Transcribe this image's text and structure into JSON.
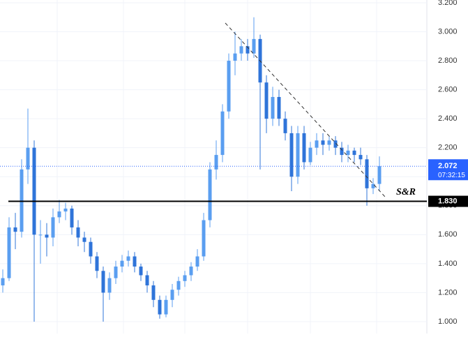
{
  "chart_data": {
    "type": "candlestick",
    "up_color": "#5a9ef0",
    "down_color": "#2f74d9",
    "ylim": [
      0.918,
      3.219
    ],
    "yticks": [
      {
        "value": 1,
        "label": "1.000"
      },
      {
        "value": 1.2,
        "label": "1.200"
      },
      {
        "value": 1.4,
        "label": "1.400"
      },
      {
        "value": 1.6,
        "label": "1.600"
      },
      {
        "value": 1.8,
        "label": "1.800"
      },
      {
        "value": 2,
        "label": "2.000"
      },
      {
        "value": 2.2,
        "label": "2.200"
      },
      {
        "value": 2.4,
        "label": "2.400"
      },
      {
        "value": 2.6,
        "label": "2.600"
      },
      {
        "value": 2.8,
        "label": "2.800"
      },
      {
        "value": 3,
        "label": "3.000"
      },
      {
        "value": 3.2,
        "label": "3.200"
      }
    ],
    "grid": true,
    "open": [
      1.25,
      1.3,
      1.65,
      1.62,
      2.05,
      2.2,
      1.6,
      1.6,
      1.58,
      1.72,
      1.76,
      1.78,
      1.65,
      1.58,
      1.55,
      1.45,
      1.35,
      1.2,
      1.3,
      1.38,
      1.42,
      1.45,
      1.38,
      1.32,
      1.25,
      1.15,
      1.05,
      1.15,
      1.22,
      1.28,
      1.32,
      1.38,
      1.45,
      1.7,
      2.05,
      2.15,
      2.45,
      2.8,
      2.85,
      2.9,
      2.85,
      2.95,
      2.65,
      2.4,
      2.55,
      2.4,
      2.3,
      2.0,
      2.3,
      2.1,
      2.2,
      2.25,
      2.22,
      2.25,
      2.2,
      2.15,
      2.18,
      2.15,
      2.12,
      1.92,
      1.95
    ],
    "high": [
      1.36,
      1.72,
      1.75,
      2.12,
      2.47,
      2.25,
      1.7,
      1.68,
      1.78,
      1.84,
      1.82,
      1.8,
      1.7,
      1.62,
      1.58,
      1.48,
      1.38,
      1.34,
      1.42,
      1.46,
      1.49,
      1.48,
      1.4,
      1.35,
      1.28,
      1.18,
      1.18,
      1.26,
      1.31,
      1.35,
      1.41,
      1.5,
      1.75,
      2.1,
      2.25,
      2.5,
      2.85,
      3.0,
      2.95,
      2.95,
      3.1,
      2.98,
      2.7,
      2.62,
      2.6,
      2.45,
      2.35,
      2.35,
      2.35,
      2.24,
      2.3,
      2.3,
      2.28,
      2.28,
      2.24,
      2.22,
      2.2,
      2.2,
      2.15,
      1.99,
      2.14
    ],
    "low": [
      1.2,
      1.28,
      1.5,
      1.58,
      1.95,
      1.0,
      1.4,
      1.45,
      1.52,
      1.68,
      1.7,
      1.6,
      1.52,
      1.48,
      1.4,
      1.3,
      1.0,
      1.15,
      1.26,
      1.34,
      1.38,
      1.34,
      1.28,
      1.2,
      1.1,
      1.02,
      1.03,
      1.1,
      1.18,
      1.24,
      1.28,
      1.35,
      1.42,
      1.65,
      1.98,
      2.1,
      2.4,
      2.7,
      2.8,
      2.8,
      2.82,
      2.05,
      2.3,
      2.35,
      2.35,
      2.25,
      1.9,
      1.95,
      2.05,
      2.08,
      2.15,
      2.15,
      2.18,
      2.15,
      2.1,
      2.1,
      2.1,
      2.08,
      1.8,
      1.88,
      1.9
    ],
    "close": [
      1.3,
      1.65,
      1.62,
      2.05,
      2.2,
      1.6,
      1.6,
      1.58,
      1.72,
      1.76,
      1.78,
      1.65,
      1.58,
      1.55,
      1.45,
      1.35,
      1.2,
      1.3,
      1.38,
      1.42,
      1.45,
      1.38,
      1.32,
      1.25,
      1.15,
      1.05,
      1.15,
      1.22,
      1.28,
      1.32,
      1.38,
      1.45,
      1.7,
      2.05,
      2.15,
      2.45,
      2.8,
      2.85,
      2.9,
      2.85,
      2.95,
      2.65,
      2.4,
      2.55,
      2.4,
      2.3,
      2.0,
      2.3,
      2.1,
      2.2,
      2.25,
      2.22,
      2.25,
      2.2,
      2.15,
      2.18,
      2.15,
      2.12,
      1.92,
      1.95,
      2.072
    ],
    "last_price": 2.072,
    "last_price_color": "#2962ff",
    "countdown": "07:32:15",
    "support": {
      "value": 1.83,
      "label": "1.830"
    },
    "support_name": "S&R"
  }
}
